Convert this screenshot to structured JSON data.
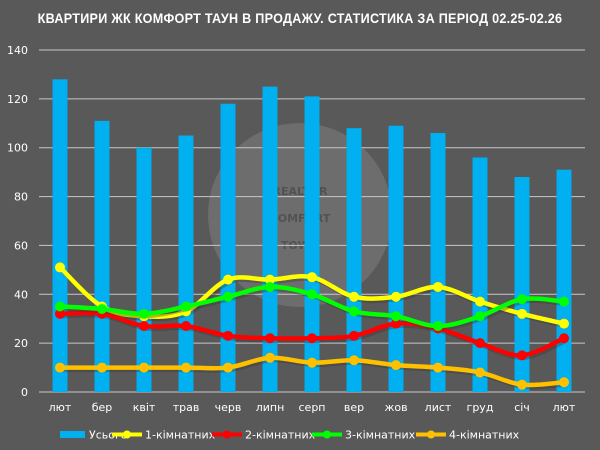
{
  "chart_data": {
    "type": "bar+line",
    "title": "КВАРТИРИ ЖК КОМФОРТ ТАУН В ПРОДАЖУ. СТАТИСТИКА ЗА ПЕРІОД 02.25-02.26",
    "categories": [
      "лют",
      "бер",
      "квіт",
      "трав",
      "черв",
      "липн",
      "серп",
      "вер",
      "жов",
      "лист",
      "груд",
      "січ",
      "лют"
    ],
    "ylim": [
      0,
      140
    ],
    "yticks": [
      0,
      20,
      40,
      60,
      80,
      100,
      120,
      140
    ],
    "grid": true,
    "legend": "bottom",
    "series": [
      {
        "name": "Усього",
        "type": "bar",
        "color": "#00b0f0",
        "values": [
          128,
          111,
          100,
          105,
          118,
          125,
          121,
          108,
          109,
          106,
          96,
          88,
          91
        ]
      },
      {
        "name": "1-кімнатних",
        "type": "line",
        "color": "#ffff00",
        "values": [
          51,
          35,
          31,
          33,
          46,
          46,
          47,
          39,
          39,
          43,
          37,
          32,
          28
        ]
      },
      {
        "name": "2-кімнатних",
        "type": "line",
        "color": "#ff0000",
        "values": [
          32,
          32,
          27,
          27,
          23,
          22,
          22,
          23,
          28,
          26,
          20,
          15,
          22
        ]
      },
      {
        "name": "3-кімнатних",
        "type": "line",
        "color": "#00ff00",
        "values": [
          35,
          34,
          32,
          35,
          39,
          43,
          40,
          33,
          31,
          27,
          31,
          38,
          37
        ]
      },
      {
        "name": "4-кімнатних",
        "type": "line",
        "color": "#ffc000",
        "values": [
          10,
          10,
          10,
          10,
          10,
          14,
          12,
          13,
          11,
          10,
          8,
          3,
          4
        ]
      }
    ]
  },
  "watermark": {
    "text": [
      "REALTOR",
      "COMFORT",
      "TOWN"
    ]
  }
}
